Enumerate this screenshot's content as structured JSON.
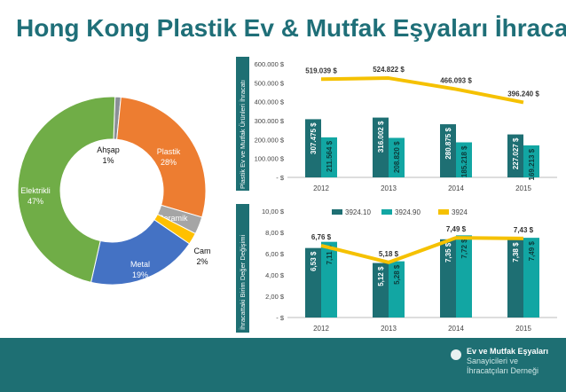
{
  "title": "Hong Kong Plastik Ev & Mutfak Eşyaları İhracatı",
  "footer": {
    "line1": "Ev ve Mutfak Eşyaları",
    "line2": "Sanayicileri ve",
    "line3": "İhracatçıları Derneği"
  },
  "chart_data": [
    {
      "type": "pie",
      "style": "donut",
      "categories": [
        "Ahşap",
        "Plastik",
        "Seramik",
        "Cam",
        "Metal",
        "Elektrikli"
      ],
      "values": [
        1,
        28,
        3,
        2,
        19,
        47
      ],
      "labels": [
        "Ahşap\n1%",
        "Plastik\n28%",
        "Seramik\n3%",
        "Cam\n2%",
        "Metal\n19%",
        "Elektrikli\n47%"
      ],
      "colors": [
        "#8a8f96",
        "#ed7d31",
        "#a5a5a5",
        "#ffc000",
        "#4472c4",
        "#70ad47"
      ]
    },
    {
      "type": "bar",
      "ylabel": "Plastik Ev ve Mutfak Ürünleri İhracatı",
      "categories": [
        "2012",
        "2013",
        "2014",
        "2015"
      ],
      "ylim": [
        0,
        600000
      ],
      "yticks": [
        "-  $",
        "100.000  $",
        "200.000  $",
        "300.000  $",
        "400.000  $",
        "500.000  $",
        "600.000  $"
      ],
      "series": [
        {
          "values": [
            307475,
            316002,
            280875,
            227027
          ],
          "labels": [
            "307.475 $",
            "316.002 $",
            "280.875 $",
            "227.027 $"
          ],
          "color": "#1e6f73"
        },
        {
          "values": [
            211564,
            208820,
            185218,
            169213
          ],
          "labels": [
            "211.564 $",
            "208.820 $",
            "185.218 $",
            "169.213 $"
          ],
          "color": "#12a6a3"
        }
      ],
      "line": {
        "type": "line",
        "values": [
          519039,
          524822,
          466093,
          396240
        ],
        "labels": [
          "519.039  $",
          "524.822  $",
          "466.093  $",
          "396.240  $"
        ],
        "color": "#f5c100"
      }
    },
    {
      "type": "bar",
      "ylabel": "İhracattaki Birim Değer Değişimi",
      "categories": [
        "2012",
        "2013",
        "2014",
        "2015"
      ],
      "ylim": [
        0,
        10
      ],
      "yticks": [
        "-  $",
        "2,00  $",
        "4,00  $",
        "6,00  $",
        "8,00  $",
        "10,00  $"
      ],
      "legend": [
        "3924.10",
        "3924.90",
        "3924"
      ],
      "series": [
        {
          "name": "3924.10",
          "values": [
            6.53,
            5.12,
            7.35,
            7.38
          ],
          "labels": [
            "6,53 $",
            "5,12 $",
            "7,35 $",
            "7,38 $"
          ],
          "color": "#1e6f73"
        },
        {
          "name": "3924.90",
          "values": [
            7.11,
            5.28,
            7.72,
            7.49
          ],
          "labels": [
            "7,11 $",
            "5,28 $",
            "7,72 $",
            "7,49 $"
          ],
          "color": "#12a6a3"
        }
      ],
      "line": {
        "name": "3924",
        "values": [
          6.76,
          5.18,
          7.49,
          7.43
        ],
        "labels": [
          "6,76  $",
          "5,18  $",
          "7,49  $",
          "7,43  $"
        ],
        "color": "#f5c100"
      }
    }
  ]
}
